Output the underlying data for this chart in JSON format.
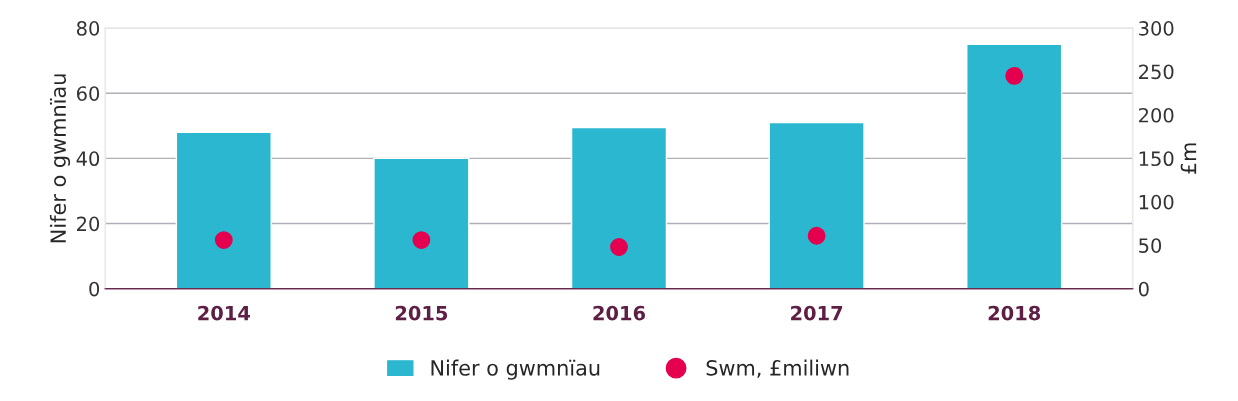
{
  "chart_data": {
    "type": "bar",
    "categories": [
      "2014",
      "2015",
      "2016",
      "2017",
      "2018"
    ],
    "ylabel": "Nifer o gwmnïau",
    "y2label": "£m",
    "series": [
      {
        "name": "Nifer o gwmnïau",
        "color": "#2bb7cf",
        "values": [
          48,
          40,
          49.5,
          51,
          75
        ]
      },
      {
        "name": "Swm, £miliwn",
        "type": "scatter",
        "axis": "y2",
        "color": "#e4004f",
        "marker": "circle",
        "values": [
          56,
          56,
          48,
          61,
          245
        ]
      }
    ],
    "ylim": [
      0,
      80
    ],
    "yticks": [
      0,
      20,
      40,
      60,
      80
    ],
    "y2lim": [
      0,
      300
    ],
    "y2ticks": [
      0,
      50,
      100,
      150,
      200,
      250,
      300
    ],
    "grid": "y",
    "legend": "bottom"
  }
}
